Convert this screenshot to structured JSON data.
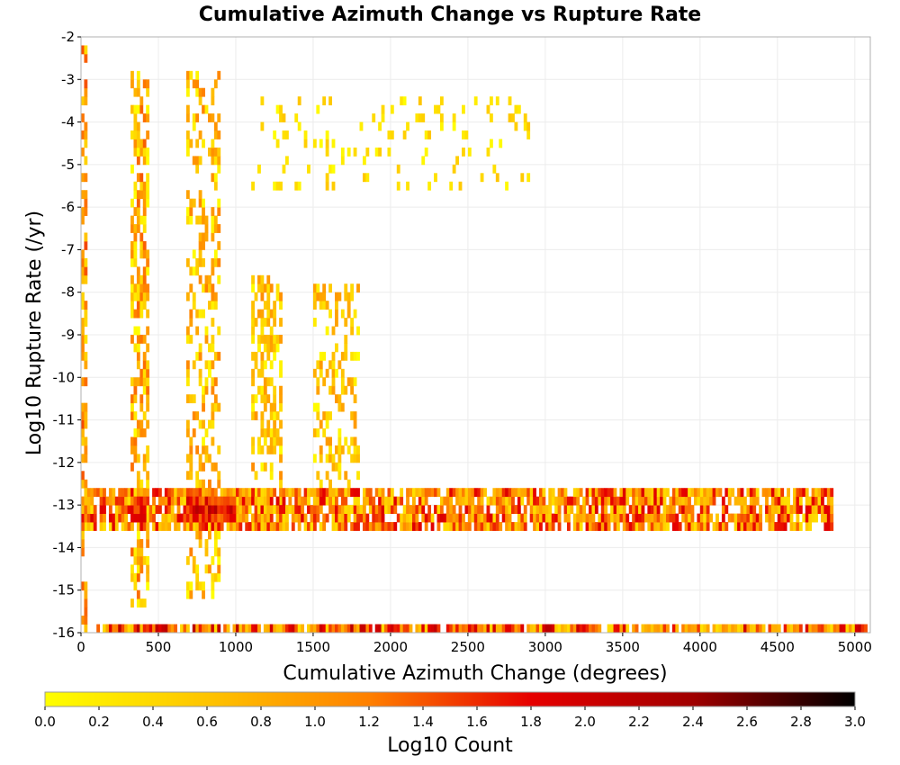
{
  "chart_data": {
    "type": "heatmap",
    "title": "Cumulative Azimuth Change vs Rupture Rate",
    "xlabel": "Cumulative Azimuth Change (degrees)",
    "ylabel": "Log10 Rupture Rate (/yr)",
    "colorbar_label": "Log10 Count",
    "xlim": [
      0,
      5100
    ],
    "ylim": [
      -16,
      -2
    ],
    "x_ticks": [
      0,
      500,
      1000,
      1500,
      2000,
      2500,
      3000,
      3500,
      4000,
      4500,
      5000
    ],
    "y_ticks": [
      -2,
      -3,
      -4,
      -5,
      -6,
      -7,
      -8,
      -9,
      -10,
      -11,
      -12,
      -13,
      -14,
      -15,
      -16
    ],
    "colorbar_range": [
      0.0,
      3.0
    ],
    "colorbar_ticks": [
      "0.0",
      "0.2",
      "0.4",
      "0.6",
      "0.8",
      "1.0",
      "1.2",
      "1.4",
      "1.6",
      "1.8",
      "2.0",
      "2.2",
      "2.4",
      "2.6",
      "2.8",
      "3.0"
    ],
    "colormap": [
      "#ffff00",
      "#ffc400",
      "#ff8000",
      "#e60000",
      "#a00000",
      "#000000"
    ],
    "grid": true,
    "bin_width": 20,
    "bin_height": 0.2,
    "density_regions": [
      {
        "x": [
          0,
          40
        ],
        "y": [
          -16,
          -2.2
        ],
        "fill": 0.55,
        "level": [
          0.3,
          1.5
        ]
      },
      {
        "x": [
          320,
          440
        ],
        "y": [
          -15.4,
          -2.8
        ],
        "fill": 0.55,
        "level": [
          0.0,
          1.4
        ]
      },
      {
        "x": [
          680,
          900
        ],
        "y": [
          -15.2,
          -2.8
        ],
        "fill": 0.35,
        "level": [
          0.0,
          1.2
        ]
      },
      {
        "x": [
          1100,
          1300
        ],
        "y": [
          -13.6,
          -7.6
        ],
        "fill": 0.5,
        "level": [
          0.0,
          1.1
        ]
      },
      {
        "x": [
          1500,
          1800
        ],
        "y": [
          -13.4,
          -7.8
        ],
        "fill": 0.35,
        "level": [
          0.0,
          1.0
        ]
      },
      {
        "x": [
          1100,
          2900
        ],
        "y": [
          -5.6,
          -3.4
        ],
        "fill": 0.12,
        "level": [
          0.0,
          0.6
        ]
      },
      {
        "x": [
          0,
          4850
        ],
        "y": [
          -13.6,
          -12.6
        ],
        "fill": 0.8,
        "level": [
          0.3,
          1.9
        ]
      },
      {
        "x": [
          680,
          1000
        ],
        "y": [
          -13.4,
          -12.8
        ],
        "fill": 1.0,
        "level": [
          1.2,
          2.3
        ]
      },
      {
        "x": [
          320,
          420
        ],
        "y": [
          -13.4,
          -12.8
        ],
        "fill": 1.0,
        "level": [
          1.0,
          2.0
        ]
      },
      {
        "x": [
          100,
          5080
        ],
        "y": [
          -16.0,
          -15.8
        ],
        "fill": 0.9,
        "level": [
          0.3,
          2.2
        ]
      }
    ]
  }
}
